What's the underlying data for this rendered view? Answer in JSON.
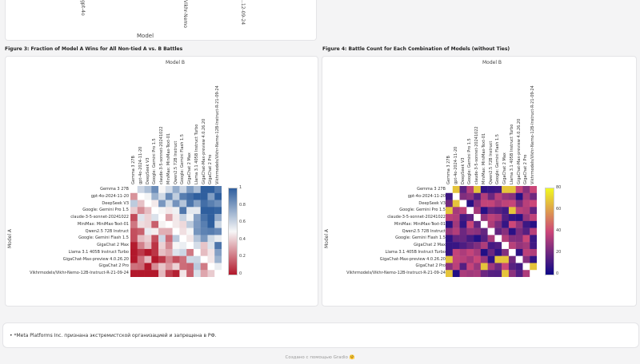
{
  "top_section": {
    "xlabel": "Model",
    "fragments": [
      "gpt-4o",
      "Vikhr-Nemo",
      "..12-09-24"
    ]
  },
  "figure3": {
    "title": "Figure 3: Fraction of Model A Wins for All Non-tied A vs. B Battles",
    "x_axis_title": "Model B",
    "y_axis_title": "Model A",
    "colorbar_ticks": [
      "1",
      "0.8",
      "0.6",
      "0.4",
      "0.2",
      "0"
    ],
    "colors": {
      "high": "#2f5f9e",
      "mid": "#f7f7f7",
      "low": "#b2182b"
    }
  },
  "figure4": {
    "title": "Figure 4: Battle Count for Each Combination of Models (without Ties)",
    "x_axis_title": "Model B",
    "y_axis_title": "Model A",
    "colorbar_ticks": [
      "80",
      "60",
      "40",
      "20",
      "0"
    ],
    "colors": {
      "high": "#f0f921",
      "mid": "#cc4778",
      "low": "#0d0887"
    }
  },
  "models": [
    "Gemma 3 27B",
    "gpt-4o-2024-11-20",
    "DeepSeek V3",
    "Google: Gemini Pro 1.5",
    "claude-3-5-sonnet-20241022",
    "MiniMax: MiniMax-Text-01",
    "Qwen2.5 72B Instruct",
    "Google: Gemini Flash 1.5",
    "GigaChat 2 Max",
    "Llama 3.1 405B Instruct Turbo",
    "GigaChat-Max-preview 4.0.26.20",
    "GigaChat 2 Pro",
    "Vikhrmodels/Vikhr-Nemo-12B-Instruct-R-21-09-24"
  ],
  "footnote": "*Meta Platforms Inc. признана экстремистской организацией и запрещена в РФ.",
  "footnote_bullet": "•",
  "footer": "Создано с помощью Gradio 🤗"
}
